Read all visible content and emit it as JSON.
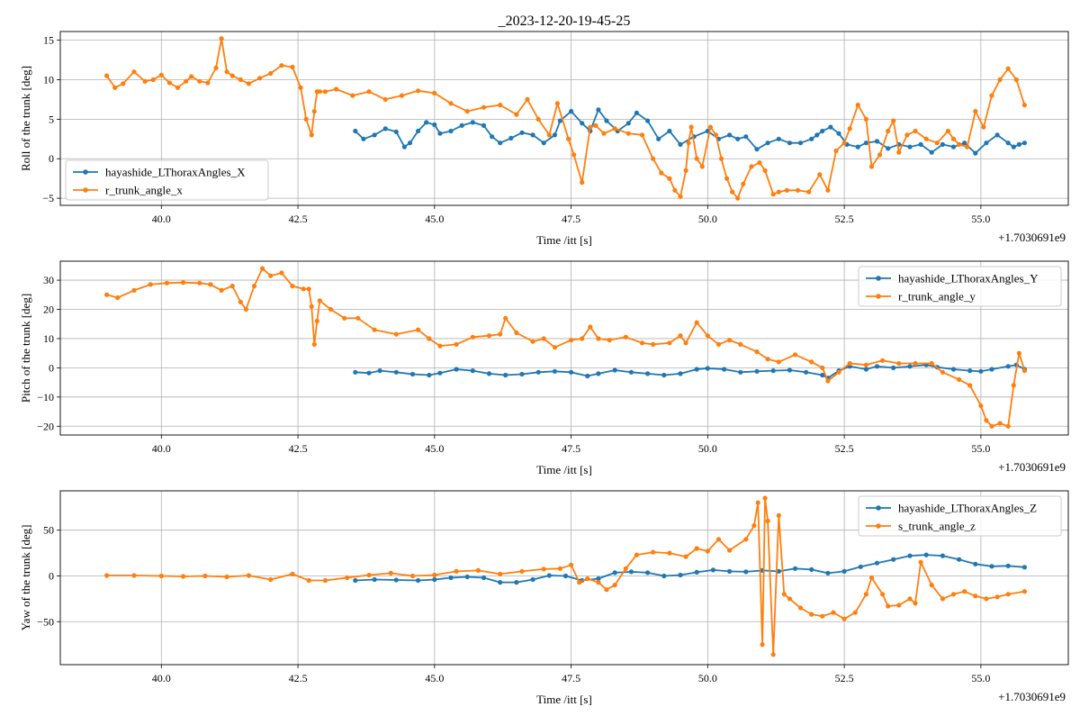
{
  "figure_title": "_2023-12-20-19-45-25",
  "colors": {
    "series_1": "#1f77b4",
    "series_2": "#ff7f0e",
    "grid": "#b0b0b0",
    "axes": "#000000"
  },
  "chart_data": [
    {
      "type": "line",
      "title": "_2023-12-20-19-45-25",
      "xlabel": "Time /itt [s]",
      "ylabel": "Roll of the trunk [deg]",
      "x_offset_label": "+1.7030691e9",
      "xlim": [
        38.15,
        56.6
      ],
      "ylim": [
        -5.9,
        16.1
      ],
      "xticks": [
        40.0,
        42.5,
        45.0,
        47.5,
        50.0,
        52.5,
        55.0
      ],
      "xtick_labels": [
        "40.0",
        "42.5",
        "45.0",
        "47.5",
        "50.0",
        "52.5",
        "55.0"
      ],
      "yticks": [
        -5,
        0,
        5,
        10,
        15
      ],
      "ytick_labels": [
        "−5",
        "0",
        "5",
        "10",
        "15"
      ],
      "grid": true,
      "legend_position": "lower-left",
      "series": [
        {
          "name": "hayashide_LThoraxAngles_X",
          "color": "#1f77b4",
          "x": [
            43.55,
            43.7,
            43.9,
            44.1,
            44.3,
            44.45,
            44.55,
            44.7,
            44.85,
            45.0,
            45.1,
            45.3,
            45.5,
            45.7,
            45.9,
            46.05,
            46.2,
            46.4,
            46.6,
            46.8,
            47.0,
            47.2,
            47.3,
            47.5,
            47.7,
            47.85,
            48.0,
            48.15,
            48.35,
            48.55,
            48.7,
            48.9,
            49.1,
            49.3,
            49.5,
            49.75,
            50.0,
            50.2,
            50.4,
            50.55,
            50.7,
            50.9,
            51.1,
            51.3,
            51.5,
            51.7,
            51.9,
            52.0,
            52.1,
            52.25,
            52.4,
            52.55,
            52.75,
            52.9,
            53.1,
            53.3,
            53.5,
            53.7,
            53.9,
            54.1,
            54.3,
            54.5,
            54.7,
            54.9,
            55.1,
            55.3,
            55.5,
            55.6,
            55.7,
            55.8
          ],
          "y": [
            3.5,
            2.5,
            3.0,
            3.8,
            3.4,
            1.5,
            2.0,
            3.5,
            4.6,
            4.3,
            3.2,
            3.5,
            4.2,
            4.6,
            4.2,
            2.8,
            2.0,
            2.6,
            3.3,
            3.0,
            2.0,
            3.0,
            4.8,
            6.0,
            4.5,
            3.5,
            6.2,
            4.8,
            3.5,
            4.5,
            5.8,
            4.8,
            2.5,
            3.5,
            1.8,
            2.8,
            3.5,
            2.5,
            3.0,
            2.5,
            2.8,
            1.2,
            2.0,
            2.5,
            2.0,
            2.0,
            2.5,
            3.0,
            3.5,
            4.0,
            3.2,
            1.8,
            1.5,
            2.0,
            2.2,
            1.3,
            1.8,
            1.5,
            1.8,
            0.8,
            1.8,
            1.5,
            2.0,
            0.7,
            2.0,
            3.0,
            2.0,
            1.5,
            1.8,
            2.0
          ]
        },
        {
          "name": "r_trunk_angle_x",
          "color": "#ff7f0e",
          "x": [
            39.0,
            39.15,
            39.3,
            39.5,
            39.7,
            39.85,
            40.0,
            40.15,
            40.3,
            40.45,
            40.55,
            40.7,
            40.85,
            41.0,
            41.1,
            41.2,
            41.3,
            41.45,
            41.6,
            41.8,
            42.0,
            42.2,
            42.4,
            42.55,
            42.65,
            42.75,
            42.8,
            42.85,
            42.9,
            43.0,
            43.2,
            43.5,
            43.8,
            44.1,
            44.4,
            44.7,
            45.0,
            45.3,
            45.6,
            45.9,
            46.2,
            46.5,
            46.7,
            46.9,
            47.1,
            47.25,
            47.45,
            47.55,
            47.7,
            47.85,
            47.95,
            48.1,
            48.3,
            48.55,
            48.8,
            49.0,
            49.15,
            49.3,
            49.4,
            49.5,
            49.6,
            49.65,
            49.7,
            49.8,
            49.9,
            50.05,
            50.15,
            50.25,
            50.35,
            50.45,
            50.55,
            50.65,
            50.8,
            50.95,
            51.05,
            51.2,
            51.3,
            51.45,
            51.65,
            51.85,
            52.05,
            52.2,
            52.35,
            52.5,
            52.6,
            52.75,
            52.9,
            53.0,
            53.15,
            53.3,
            53.4,
            53.5,
            53.65,
            53.8,
            54.0,
            54.2,
            54.4,
            54.5,
            54.6,
            54.75,
            54.9,
            55.05,
            55.2,
            55.35,
            55.5,
            55.65,
            55.8
          ],
          "y": [
            10.5,
            9.0,
            9.5,
            11.0,
            9.8,
            10.0,
            10.6,
            9.6,
            9.0,
            9.8,
            10.4,
            9.8,
            9.6,
            11.5,
            15.2,
            11.0,
            10.5,
            10.0,
            9.5,
            10.2,
            10.8,
            11.8,
            11.6,
            9.0,
            5.0,
            3.0,
            6.0,
            8.5,
            8.5,
            8.5,
            8.8,
            8.0,
            8.5,
            7.5,
            8.0,
            8.6,
            8.3,
            7.0,
            6.0,
            6.5,
            6.8,
            5.6,
            7.5,
            5.0,
            3.0,
            7.0,
            2.5,
            0.5,
            -3.0,
            4.0,
            4.2,
            3.2,
            3.8,
            3.2,
            3.0,
            0.0,
            -1.8,
            -2.5,
            -4.0,
            -4.8,
            -1.5,
            2.0,
            4.0,
            0.0,
            -1.0,
            4.0,
            3.0,
            0.0,
            -2.5,
            -4.2,
            -5.0,
            -3.2,
            -1.0,
            -0.5,
            -1.5,
            -4.5,
            -4.2,
            -4.0,
            -4.0,
            -4.2,
            -2.0,
            -4.0,
            1.0,
            2.0,
            3.8,
            6.8,
            5.0,
            -1.0,
            0.5,
            3.5,
            4.8,
            0.8,
            3.0,
            3.5,
            2.5,
            2.0,
            3.5,
            2.5,
            1.8,
            1.5,
            6.0,
            4.0,
            8.0,
            10.0,
            11.4,
            10.0,
            6.8
          ]
        }
      ]
    },
    {
      "type": "line",
      "xlabel": "Time /itt [s]",
      "ylabel": "Pitch of the trunk [deg]",
      "x_offset_label": "+1.7030691e9",
      "xlim": [
        38.15,
        56.6
      ],
      "ylim": [
        -23.0,
        36.5
      ],
      "xticks": [
        40.0,
        42.5,
        45.0,
        47.5,
        50.0,
        52.5,
        55.0
      ],
      "xtick_labels": [
        "40.0",
        "42.5",
        "45.0",
        "47.5",
        "50.0",
        "52.5",
        "55.0"
      ],
      "yticks": [
        -20,
        -10,
        0,
        10,
        20,
        30
      ],
      "ytick_labels": [
        "−20",
        "−10",
        "0",
        "10",
        "20",
        "30"
      ],
      "grid": true,
      "legend_position": "upper-right",
      "series": [
        {
          "name": "hayashide_LThoraxAngles_Y",
          "color": "#1f77b4",
          "x": [
            43.55,
            43.8,
            44.0,
            44.3,
            44.6,
            44.9,
            45.1,
            45.4,
            45.7,
            46.0,
            46.3,
            46.6,
            46.9,
            47.2,
            47.5,
            47.8,
            48.0,
            48.3,
            48.6,
            48.9,
            49.2,
            49.5,
            49.8,
            50.0,
            50.3,
            50.6,
            50.9,
            51.2,
            51.5,
            51.8,
            52.1,
            52.2,
            52.4,
            52.6,
            52.9,
            53.1,
            53.4,
            53.7,
            54.0,
            54.2,
            54.5,
            54.8,
            55.0,
            55.2,
            55.5,
            55.65,
            55.8
          ],
          "y": [
            -1.5,
            -1.8,
            -1.0,
            -1.5,
            -2.2,
            -2.5,
            -1.8,
            -0.5,
            -1.0,
            -2.0,
            -2.5,
            -2.2,
            -1.5,
            -1.2,
            -1.5,
            -2.8,
            -2.0,
            -0.8,
            -1.5,
            -2.0,
            -2.5,
            -2.0,
            -0.5,
            -0.2,
            -0.5,
            -1.5,
            -1.2,
            -1.0,
            -0.8,
            -1.5,
            -2.5,
            -3.5,
            -1.0,
            0.5,
            -0.5,
            0.5,
            0.0,
            0.5,
            1.0,
            0.2,
            -0.5,
            -1.0,
            -1.2,
            -0.5,
            0.5,
            1.0,
            -0.5
          ]
        },
        {
          "name": "r_trunk_angle_y",
          "color": "#ff7f0e",
          "x": [
            39.0,
            39.2,
            39.5,
            39.8,
            40.1,
            40.4,
            40.7,
            40.9,
            41.1,
            41.3,
            41.45,
            41.55,
            41.7,
            41.85,
            42.0,
            42.2,
            42.4,
            42.6,
            42.7,
            42.75,
            42.8,
            42.85,
            42.9,
            43.1,
            43.35,
            43.6,
            43.9,
            44.3,
            44.7,
            44.9,
            45.1,
            45.4,
            45.7,
            46.0,
            46.2,
            46.3,
            46.5,
            46.8,
            47.0,
            47.2,
            47.5,
            47.7,
            47.85,
            48.0,
            48.2,
            48.5,
            48.8,
            49.0,
            49.3,
            49.5,
            49.6,
            49.8,
            50.0,
            50.2,
            50.4,
            50.6,
            50.9,
            51.1,
            51.3,
            51.6,
            51.9,
            52.1,
            52.2,
            52.4,
            52.6,
            52.9,
            53.2,
            53.5,
            53.8,
            54.1,
            54.3,
            54.6,
            54.8,
            55.0,
            55.1,
            55.2,
            55.35,
            55.5,
            55.6,
            55.7,
            55.8
          ],
          "y": [
            25.0,
            24.0,
            26.5,
            28.5,
            29.0,
            29.2,
            29.0,
            28.5,
            26.5,
            28.0,
            22.5,
            20.0,
            28.0,
            34.0,
            31.5,
            32.5,
            28.0,
            27.0,
            27.0,
            21.0,
            8.0,
            16.0,
            23.0,
            20.0,
            17.0,
            17.0,
            13.0,
            11.5,
            13.0,
            10.0,
            7.5,
            8.0,
            10.5,
            11.0,
            11.5,
            17.0,
            12.0,
            9.0,
            10.0,
            7.0,
            9.5,
            10.0,
            14.0,
            10.0,
            9.5,
            10.5,
            8.5,
            8.0,
            8.5,
            11.0,
            8.5,
            15.5,
            11.0,
            8.0,
            9.5,
            8.0,
            5.5,
            3.0,
            2.0,
            4.5,
            2.0,
            0.0,
            -4.5,
            -1.5,
            1.5,
            1.0,
            2.5,
            1.5,
            1.5,
            1.5,
            -1.5,
            -4.0,
            -6.0,
            -13.0,
            -18.0,
            -20.0,
            -19.0,
            -20.0,
            -6.0,
            5.0,
            -1.0
          ]
        }
      ]
    },
    {
      "type": "line",
      "xlabel": "Time /itt [s]",
      "ylabel": "Yaw of the trunk [deg]",
      "x_offset_label": "+1.7030691e9",
      "xlim": [
        38.15,
        56.6
      ],
      "ylim": [
        -97.0,
        93.0
      ],
      "xticks": [
        40.0,
        42.5,
        45.0,
        47.5,
        50.0,
        52.5,
        55.0
      ],
      "xtick_labels": [
        "40.0",
        "42.5",
        "45.0",
        "47.5",
        "50.0",
        "52.5",
        "55.0"
      ],
      "yticks": [
        -50,
        0,
        50
      ],
      "ytick_labels": [
        "−50",
        "0",
        "50"
      ],
      "grid": true,
      "legend_position": "upper-right",
      "series": [
        {
          "name": "hayashide_LThoraxAngles_Z",
          "color": "#1f77b4",
          "x": [
            43.55,
            43.9,
            44.3,
            44.7,
            45.0,
            45.3,
            45.6,
            45.9,
            46.2,
            46.5,
            46.8,
            47.1,
            47.4,
            47.7,
            48.0,
            48.3,
            48.6,
            48.9,
            49.2,
            49.5,
            49.8,
            50.1,
            50.4,
            50.7,
            51.0,
            51.3,
            51.6,
            51.9,
            52.2,
            52.5,
            52.8,
            53.1,
            53.4,
            53.7,
            54.0,
            54.3,
            54.6,
            54.9,
            55.2,
            55.5,
            55.8
          ],
          "y": [
            -5.0,
            -4.0,
            -4.5,
            -5.0,
            -4.0,
            -2.0,
            -1.0,
            -2.0,
            -7.0,
            -7.0,
            -4.0,
            0.5,
            0.0,
            -5.0,
            -3.0,
            3.5,
            4.5,
            3.5,
            0.0,
            1.0,
            4.0,
            6.5,
            5.0,
            4.5,
            6.0,
            5.0,
            8.0,
            7.0,
            3.0,
            5.0,
            10.0,
            14.0,
            18.0,
            22.0,
            23.0,
            22.0,
            18.0,
            13.0,
            10.5,
            11.0,
            9.5
          ]
        },
        {
          "name": "s_trunk_angle_z",
          "color": "#ff7f0e",
          "x": [
            39.0,
            39.5,
            40.0,
            40.4,
            40.8,
            41.2,
            41.6,
            42.0,
            42.4,
            42.7,
            43.0,
            43.4,
            43.8,
            44.2,
            44.6,
            45.0,
            45.4,
            45.8,
            46.2,
            46.6,
            47.0,
            47.3,
            47.5,
            47.65,
            47.8,
            48.0,
            48.15,
            48.3,
            48.5,
            48.7,
            49.0,
            49.3,
            49.6,
            49.8,
            50.0,
            50.2,
            50.4,
            50.7,
            50.85,
            50.92,
            51.0,
            51.05,
            51.1,
            51.2,
            51.3,
            51.4,
            51.5,
            51.7,
            51.9,
            52.1,
            52.3,
            52.5,
            52.7,
            52.9,
            53.0,
            53.2,
            53.3,
            53.5,
            53.7,
            53.8,
            53.9,
            54.1,
            54.3,
            54.5,
            54.7,
            54.9,
            55.1,
            55.3,
            55.5,
            55.8
          ],
          "y": [
            0.5,
            0.5,
            0.0,
            -0.5,
            0.0,
            -1.0,
            0.5,
            -4.0,
            2.0,
            -5.0,
            -5.0,
            -2.0,
            1.0,
            3.0,
            0.0,
            1.0,
            5.0,
            6.0,
            2.0,
            5.0,
            7.5,
            8.0,
            12.0,
            -7.0,
            -3.0,
            -7.0,
            -15.0,
            -10.0,
            8.0,
            23.0,
            26.0,
            25.0,
            21.0,
            30.0,
            27.0,
            40.0,
            28.0,
            40.0,
            55.0,
            80.0,
            -75.0,
            85.0,
            60.0,
            -86.0,
            66.0,
            -20.0,
            -25.0,
            -35.0,
            -42.0,
            -44.0,
            -40.0,
            -47.0,
            -40.0,
            -20.0,
            -2.0,
            -20.0,
            -33.0,
            -32.0,
            -25.0,
            -30.0,
            15.0,
            -10.0,
            -25.0,
            -20.0,
            -17.0,
            -22.0,
            -25.0,
            -23.0,
            -20.0,
            -17.0
          ]
        }
      ]
    }
  ]
}
